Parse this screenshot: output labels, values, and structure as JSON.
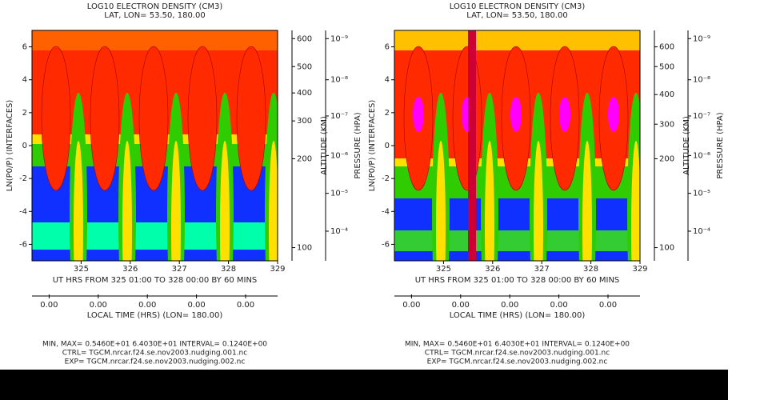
{
  "chart_data": [
    {
      "type": "contour",
      "title": [
        "LOG10 ELECTRON DENSITY (CM3)",
        "LAT, LON= 53.50, 180.00"
      ],
      "ylabel": "LN(P0/P) (INTERFACES)",
      "ylim": [
        -7,
        7
      ],
      "yticks": [
        -6,
        -4,
        -2,
        0,
        2,
        4,
        6
      ],
      "xlim": [
        324,
        329
      ],
      "xticks": [
        325,
        326,
        327,
        328,
        329
      ],
      "xlabel": "UT HRS FROM 325 01:00 TO 328 00:00 BY 60 MINS",
      "lt_label": "LOCAL TIME (HRS) (LON= 180.00)",
      "lt_ticks": [
        "0.00",
        "0.00",
        "0.00",
        "0.00",
        "0.00"
      ],
      "alt_label": "ALTITUDE (KM)",
      "alt_ticks": [
        {
          "value": 6.5,
          "label": "600"
        },
        {
          "value": 4.8,
          "label": "500"
        },
        {
          "value": 3.2,
          "label": "400"
        },
        {
          "value": 1.5,
          "label": "300"
        },
        {
          "value": -0.8,
          "label": "200"
        },
        {
          "value": -6.2,
          "label": "100"
        }
      ],
      "p_label": "PRESSURE (HPA)",
      "p_ticks": [
        {
          "value": 6.5,
          "label": "10⁻⁹"
        },
        {
          "value": 4,
          "label": "10⁻⁸"
        },
        {
          "value": 1.8,
          "label": "10⁻⁷"
        },
        {
          "value": -0.6,
          "label": "10⁻⁶"
        },
        {
          "value": -2.9,
          "label": "10⁻⁵"
        },
        {
          "value": -5.2,
          "label": "10⁻⁴"
        }
      ],
      "notes": [
        "MIN, MAX= 0.5460E+01 6.4030E+01 INTERVAL= 0.1240E+00",
        "CTRL= TGCM.nrcar.f24.se.nov2003.nudging.001.nc",
        "EXP= TGCM.nrcar.f24.se.nov2003.nudging.002.nc"
      ]
    },
    {
      "type": "contour",
      "title": [
        "LOG10 ELECTRON DENSITY (CM3)",
        "LAT, LON= 53.50, 180.00"
      ],
      "ylabel": "LN(P0/P) (INTERFACES)",
      "ylim": [
        -7,
        7
      ],
      "yticks": [
        -6,
        -4,
        -2,
        0,
        2,
        4,
        6
      ],
      "xlim": [
        324,
        329
      ],
      "xticks": [
        325,
        326,
        327,
        328,
        329
      ],
      "xlabel": "UT HRS FROM 325 01:00 TO 328 00:00 BY 60 MINS",
      "lt_label": "LOCAL TIME (HRS) (LON= 180.00)",
      "lt_ticks": [
        "0.00",
        "0.00",
        "0.00",
        "0.00",
        "0.00"
      ],
      "alt_label": "ALTITUDE (KM)",
      "alt_ticks": [
        {
          "value": 6,
          "label": "600"
        },
        {
          "value": 4.8,
          "label": "500"
        },
        {
          "value": 3.1,
          "label": "400"
        },
        {
          "value": 1.3,
          "label": "300"
        },
        {
          "value": -0.8,
          "label": "200"
        },
        {
          "value": -6.2,
          "label": "100"
        }
      ],
      "p_label": "PRESSURE (HPA)",
      "p_ticks": [
        {
          "value": 6.5,
          "label": "10⁻⁹"
        },
        {
          "value": 4,
          "label": "10⁻⁸"
        },
        {
          "value": 1.8,
          "label": "10⁻⁷"
        },
        {
          "value": -0.6,
          "label": "10⁻⁶"
        },
        {
          "value": -2.9,
          "label": "10⁻⁵"
        },
        {
          "value": -5.2,
          "label": "10⁻⁴"
        }
      ],
      "notes": [
        "MIN, MAX= 0.5460E+01 6.4030E+01 INTERVAL= 0.1240E+00",
        "CTRL= TGCM.nrcar.f24.se.nov2003.nudging.001.nc",
        "EXP= TGCM.nrcar.f24.se.nov2003.nudging.002.nc"
      ]
    }
  ]
}
